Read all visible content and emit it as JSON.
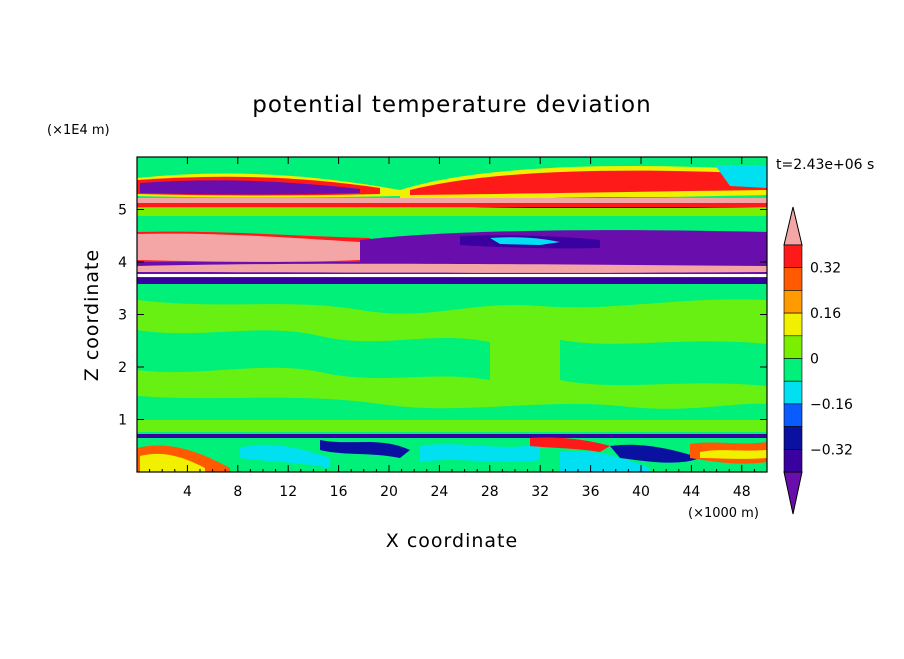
{
  "chart_data": {
    "type": "heatmap",
    "title": "potential temperature deviation",
    "xlabel": "X coordinate",
    "ylabel": "Z coordinate",
    "x_unit": "(×1000 m)",
    "y_unit": "(×1E4 m)",
    "time_label": "t=2.43e+06 s",
    "xlim": [
      0,
      50
    ],
    "ylim": [
      0,
      6
    ],
    "x_ticks": [
      4,
      8,
      12,
      16,
      20,
      24,
      28,
      32,
      36,
      40,
      44,
      48
    ],
    "x_tick_labels": [
      "4",
      "8",
      "12",
      "16",
      "20",
      "24",
      "28",
      "32",
      "36",
      "40",
      "44",
      "48"
    ],
    "y_ticks": [
      1,
      2,
      3,
      4,
      5
    ],
    "y_tick_labels": [
      "1",
      "2",
      "3",
      "4",
      "5"
    ],
    "colorbar": {
      "levels": [
        -0.4,
        -0.32,
        -0.24,
        -0.16,
        -0.08,
        0,
        0.08,
        0.16,
        0.24,
        0.32,
        0.4
      ],
      "tick_values": [
        0.32,
        0.16,
        0,
        -0.16,
        -0.32
      ],
      "tick_labels": [
        "0.32",
        "0.16",
        "0",
        "−0.16",
        "−0.32"
      ],
      "colors": [
        "#6a0dad",
        "#3a00a0",
        "#0a10a0",
        "#0a5cff",
        "#00e0f0",
        "#00f07a",
        "#7af000",
        "#f0f000",
        "#ff9a00",
        "#ff5a00",
        "#ff1a1a",
        "#f4a6a6"
      ]
    },
    "bands": [
      {
        "z": [
          5.45,
          5.6
        ],
        "value": -0.45
      },
      {
        "z": [
          5.2,
          5.45
        ],
        "value": 0.28
      },
      {
        "z": [
          4.1,
          4.6
        ],
        "value": 0.45
      },
      {
        "z": [
          3.7,
          4.1
        ],
        "value": -0.45
      },
      {
        "z": [
          0.7,
          3.6
        ],
        "value": 0.02
      },
      {
        "z": [
          0.0,
          0.7
        ],
        "value": 0.1
      }
    ]
  }
}
